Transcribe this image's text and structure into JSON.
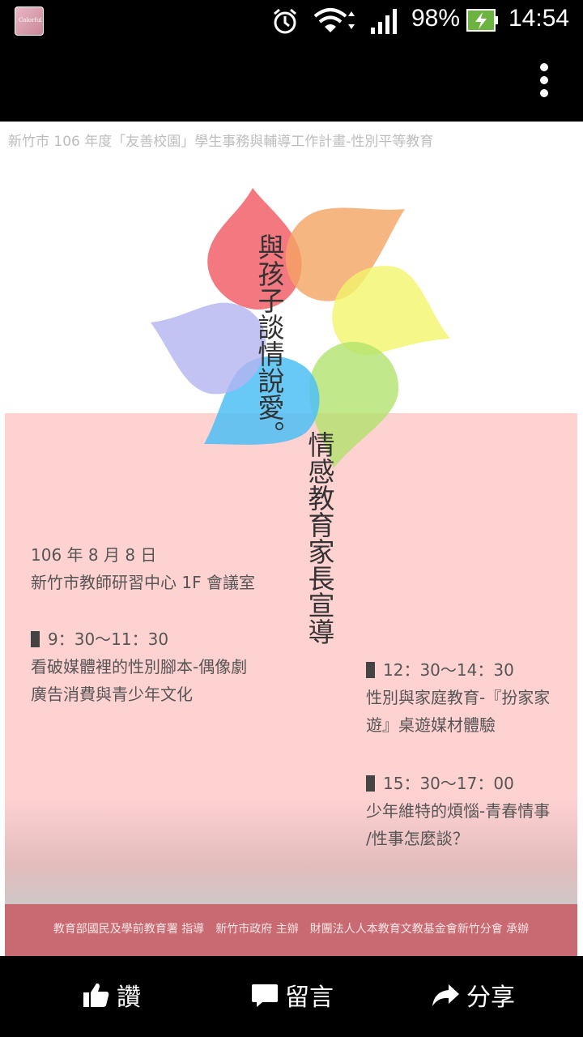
{
  "status": {
    "battery": "98%",
    "time": "14:54",
    "app_thumb_text": "Colorful"
  },
  "poster": {
    "header": "新竹市 106 年度「友善校園」學生事務與輔導工作計畫-性別平等教育",
    "title_col1": "與孩子談情說愛。",
    "title_col2": "情感教育家長宣導",
    "date": "106 年 8 月 8 日",
    "venue": "新竹市教師研習中心 1F 會議室",
    "sessions": [
      {
        "time": "9：30～11：30",
        "line1": "看破媒體裡的性別腳本-偶像劇",
        "line2": "廣告消費與青少年文化"
      },
      {
        "time": "12：30～14：30",
        "line1": "性別與家庭教育-『扮家家",
        "line2": "遊』桌遊媒材體驗"
      },
      {
        "time": "15：30～17：00",
        "line1": "少年維特的煩惱-青春情事",
        "line2": "/性事怎麼談？"
      }
    ],
    "footer": "教育部國民及學前教育署 指導　新竹市政府 主辦　財團法人人本教育文教基金會新竹分會 承辦",
    "colors": {
      "pink_panel": "#ffd2d2",
      "footer": "#c96a72"
    }
  },
  "actions": {
    "like": "讚",
    "comment": "留言",
    "share": "分享"
  },
  "icons": [
    "alarm-icon",
    "wifi-icon",
    "signal-icon",
    "battery-icon",
    "overflow-menu-icon",
    "thumbs-up-icon",
    "comment-icon",
    "share-icon"
  ]
}
